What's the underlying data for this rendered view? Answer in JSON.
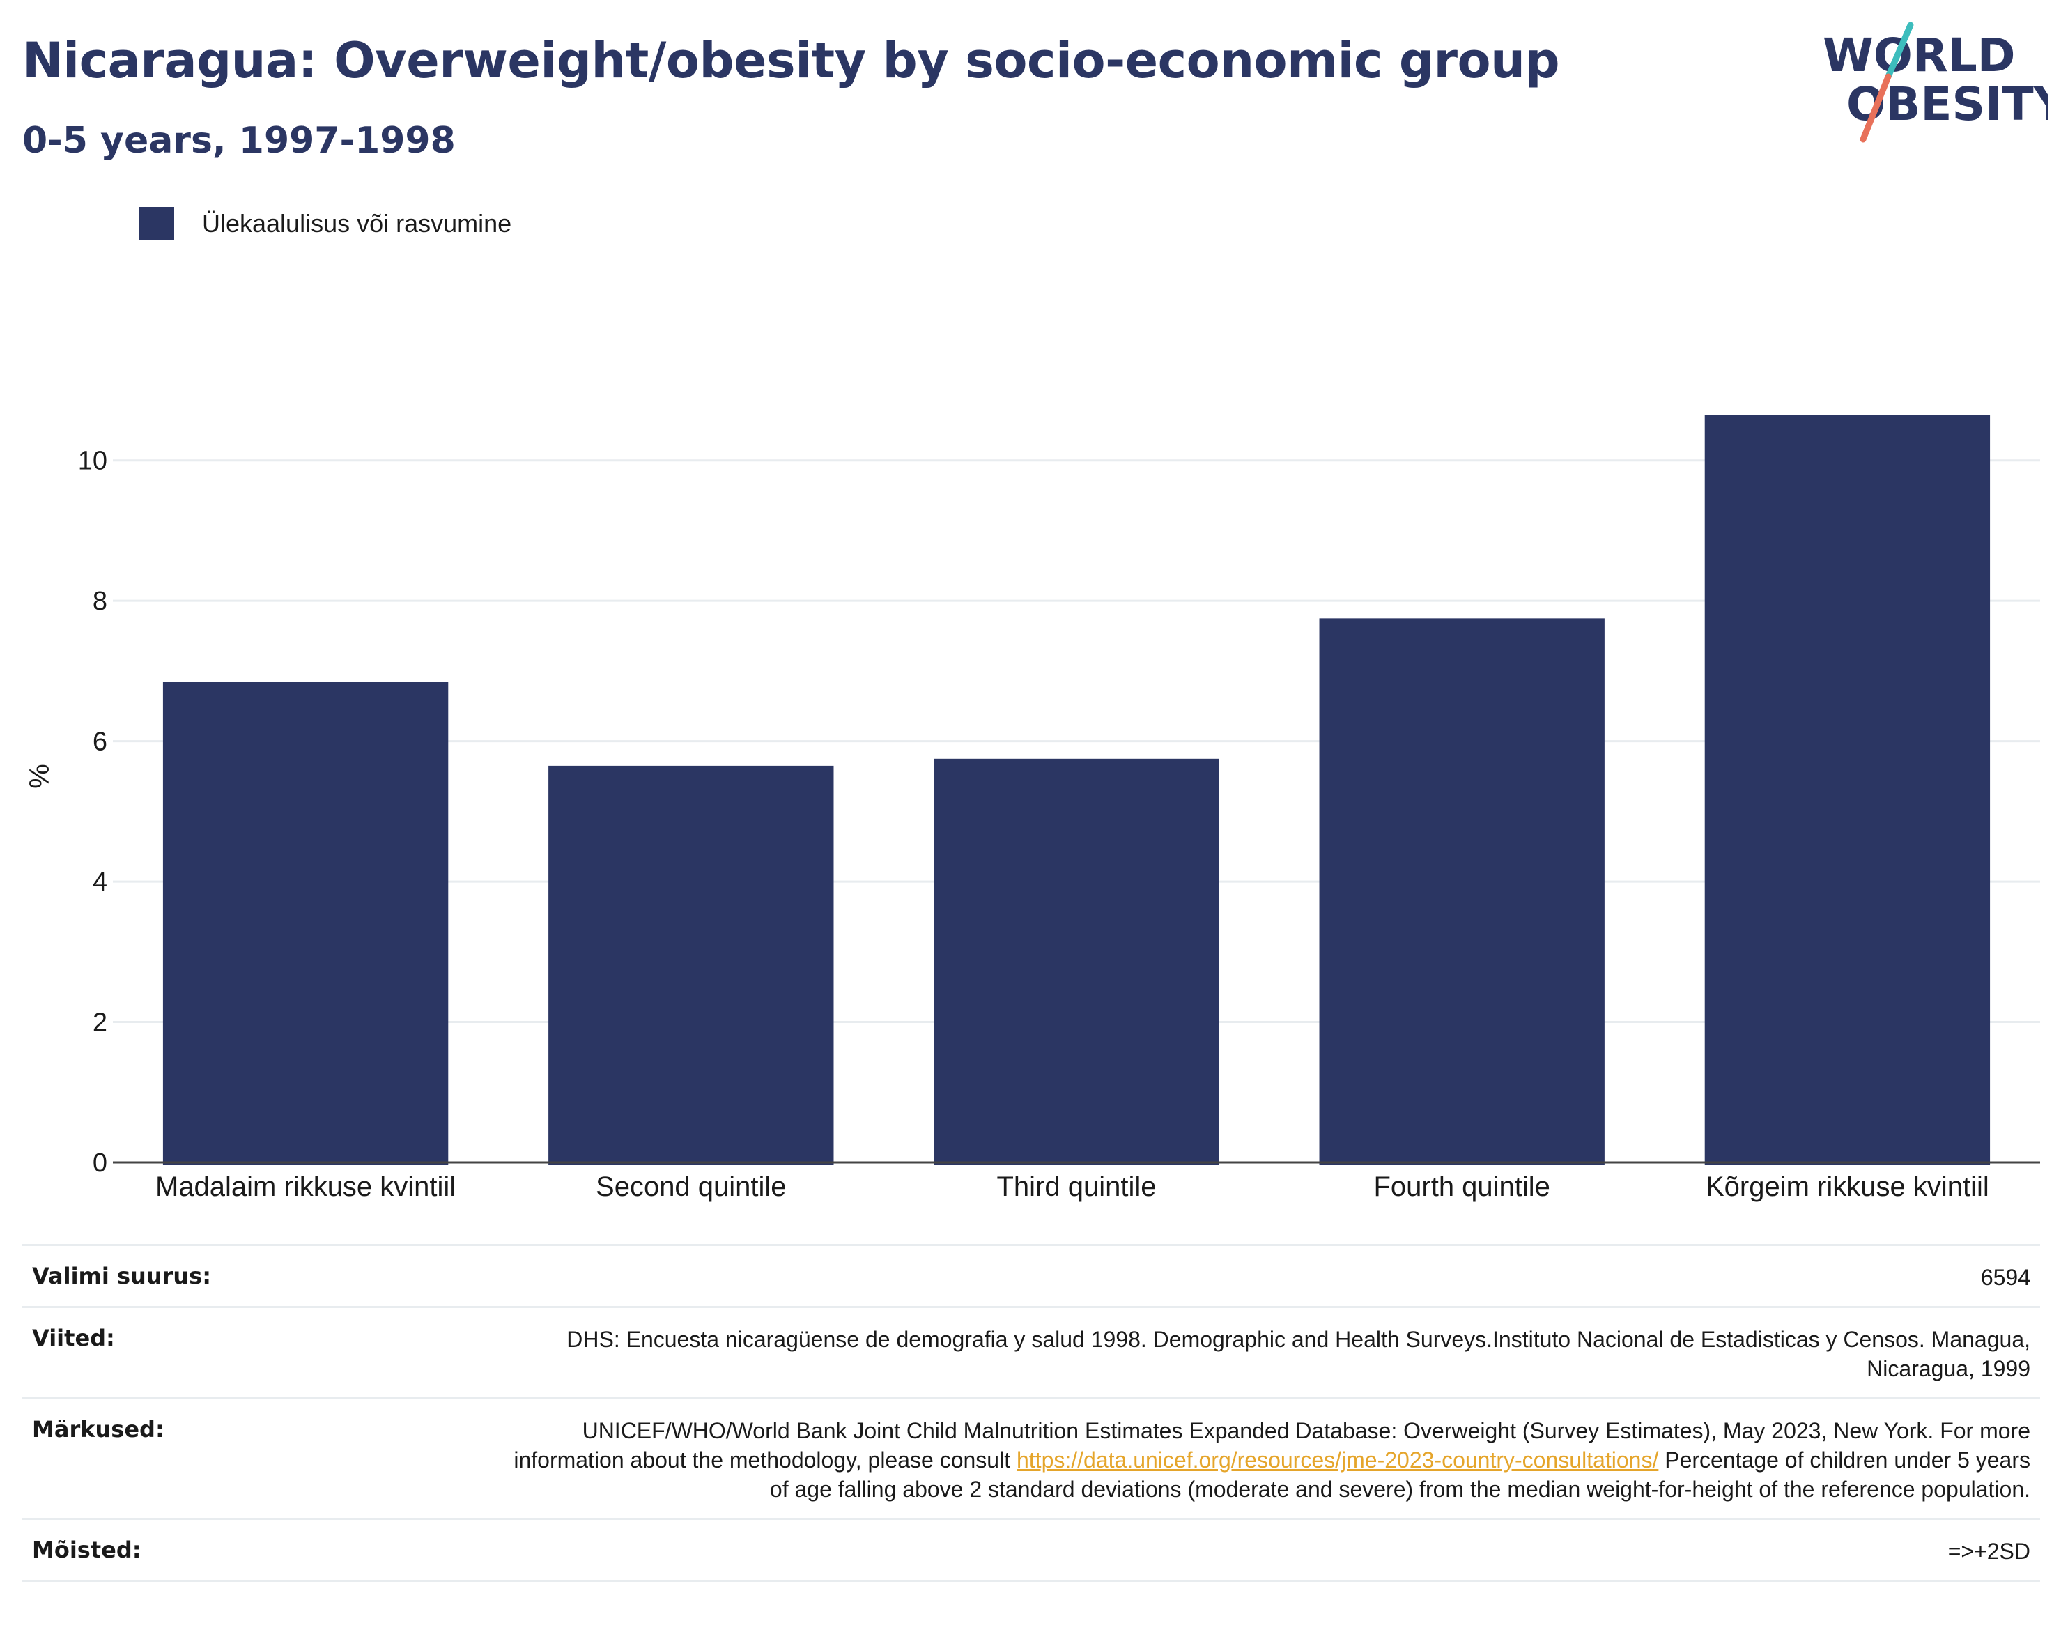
{
  "header": {
    "title": "Nicaragua: Overweight/obesity by socio-economic group",
    "subtitle": "0-5 years, 1997-1998"
  },
  "logo": {
    "line1": "WORLD",
    "line2": "OBESITY",
    "colors": {
      "text": "#2b3663",
      "slash_top": "#3dbdbd",
      "slash_bottom": "#e8715a"
    }
  },
  "legend": {
    "label": "Ülekaalulisus või rasvumine",
    "color": "#2b3663"
  },
  "chart_data": {
    "type": "bar",
    "categories": [
      "Madalaim rikkuse kvintiil",
      "Second quintile",
      "Third quintile",
      "Fourth quintile",
      "Kõrgeim rikkuse kvintiil"
    ],
    "series": [
      {
        "name": "Ülekaalulisus või rasvumine",
        "values": [
          6.85,
          5.65,
          5.75,
          7.75,
          10.65
        ],
        "color": "#2b3663"
      }
    ],
    "ylabel": "%",
    "ylim": [
      0,
      11.0
    ],
    "yticks": [
      0,
      2,
      4,
      6,
      8,
      10
    ],
    "grid": true,
    "legend_position": "top-left"
  },
  "footer": {
    "sample_size_label": "Valimi suurus:",
    "sample_size_value": "6594",
    "references_label": "Viited:",
    "references_value": "DHS: Encuesta nicaragüense de demografia y salud 1998. Demographic and Health Surveys.Instituto Nacional de Estadisticas y Censos. Managua, Nicaragua, 1999",
    "notes_label": "Märkused:",
    "notes_text_before": "UNICEF/WHO/World Bank Joint Child Malnutrition Estimates Expanded Database: Overweight (Survey Estimates), May 2023, New York. For more information about the methodology, please consult ",
    "notes_link": "https://data.unicef.org/resources/jme-2023-country-consultations/",
    "notes_text_after": " Percentage of children under 5 years of age falling above 2 standard deviations (moderate and severe) from the median weight-for-height of the reference population.",
    "definitions_label": "Mõisted:",
    "definitions_value": "=>+2SD"
  }
}
